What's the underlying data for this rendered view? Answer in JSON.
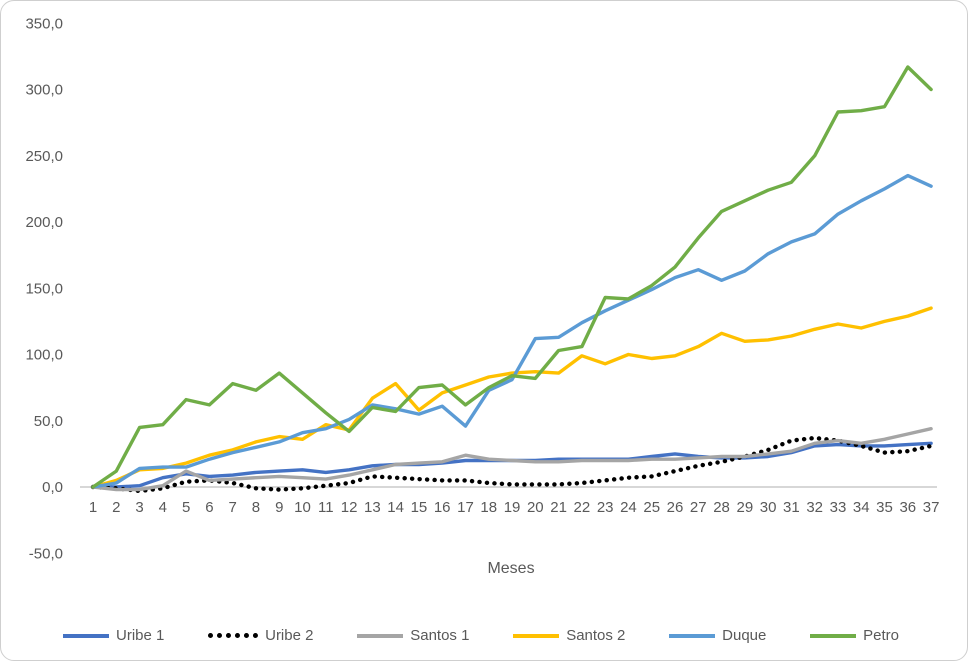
{
  "chart_data": {
    "type": "line",
    "title": "",
    "xlabel": "Meses",
    "ylabel": "",
    "x": [
      1,
      2,
      3,
      4,
      5,
      6,
      7,
      8,
      9,
      10,
      11,
      12,
      13,
      14,
      15,
      16,
      17,
      18,
      19,
      20,
      21,
      22,
      23,
      24,
      25,
      26,
      27,
      28,
      29,
      30,
      31,
      32,
      33,
      34,
      35,
      36,
      37
    ],
    "y_axis": {
      "min": -50,
      "max": 350,
      "tick_step": 50,
      "tick_values": [
        350,
        300,
        250,
        200,
        150,
        100,
        50,
        0,
        -50
      ],
      "tick_labels": [
        "350,0",
        "300,0",
        "250,0",
        "200,0",
        "150,0",
        "100,0",
        "50,0",
        "0,0",
        "-50,0"
      ]
    },
    "grid": "zero-axis-line-only",
    "legend_position": "bottom",
    "series": [
      {
        "name": "Uribe 1",
        "color": "#4472C4",
        "style": "solid",
        "values": [
          0,
          0,
          1,
          7,
          10,
          8,
          9,
          11,
          12,
          13,
          11,
          13,
          16,
          17,
          17,
          18,
          20,
          20,
          20,
          20,
          21,
          21,
          21,
          21,
          23,
          25,
          23,
          22,
          22,
          23,
          26,
          31,
          32,
          31,
          31,
          32,
          33
        ]
      },
      {
        "name": "Uribe 2",
        "color": "#000000",
        "style": "dotted",
        "values": [
          0,
          -1,
          -3,
          -1,
          4,
          5,
          3,
          -1,
          -2,
          -1,
          1,
          3,
          8,
          7,
          6,
          5,
          5,
          3,
          2,
          2,
          2,
          3,
          5,
          7,
          8,
          12,
          16,
          19,
          23,
          28,
          35,
          37,
          35,
          31,
          26,
          27,
          31
        ]
      },
      {
        "name": "Santos 1",
        "color": "#A5A5A5",
        "style": "solid",
        "values": [
          0,
          -2,
          -2,
          1,
          12,
          5,
          6,
          7,
          8,
          7,
          6,
          9,
          13,
          17,
          18,
          19,
          24,
          21,
          20,
          19,
          19,
          20,
          20,
          20,
          21,
          21,
          22,
          23,
          23,
          25,
          27,
          33,
          35,
          33,
          36,
          40,
          44
        ]
      },
      {
        "name": "Santos 2",
        "color": "#FFC000",
        "style": "solid",
        "values": [
          0,
          5,
          13,
          14,
          18,
          24,
          28,
          34,
          38,
          36,
          47,
          43,
          67,
          78,
          58,
          71,
          77,
          83,
          86,
          87,
          86,
          99,
          93,
          100,
          97,
          99,
          106,
          116,
          110,
          111,
          114,
          119,
          123,
          120,
          125,
          129,
          135
        ]
      },
      {
        "name": "Duque",
        "color": "#5B9BD5",
        "style": "solid",
        "values": [
          0,
          3,
          14,
          15,
          15,
          21,
          26,
          30,
          34,
          41,
          44,
          51,
          62,
          59,
          55,
          61,
          46,
          73,
          81,
          112,
          113,
          124,
          133,
          141,
          149,
          158,
          164,
          156,
          163,
          176,
          185,
          191,
          206,
          216,
          225,
          235,
          227
        ]
      },
      {
        "name": "Petro",
        "color": "#70AD47",
        "style": "solid",
        "values": [
          0,
          12,
          45,
          47,
          66,
          62,
          78,
          73,
          86,
          71,
          56,
          42,
          60,
          57,
          75,
          77,
          62,
          75,
          84,
          82,
          103,
          106,
          143,
          142,
          152,
          166,
          188,
          208,
          216,
          224,
          230,
          250,
          283,
          284,
          287,
          317,
          300
        ]
      }
    ]
  }
}
